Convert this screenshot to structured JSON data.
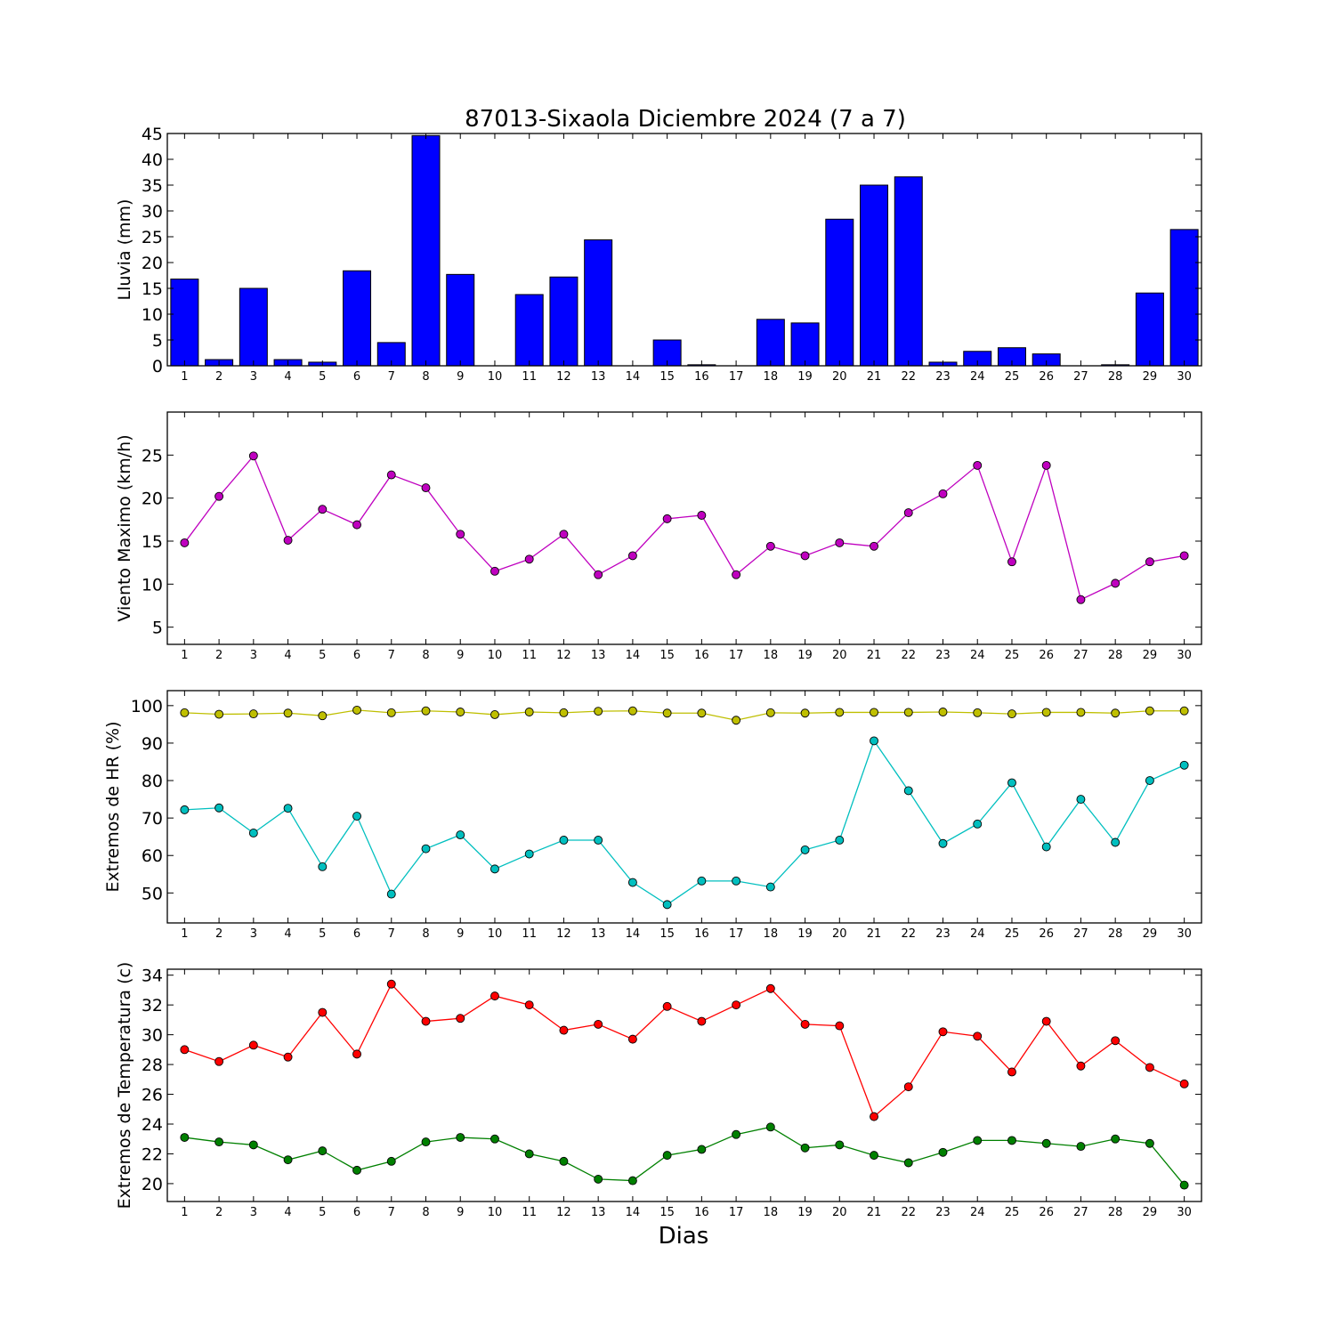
{
  "title": "87013-Sixaola Diciembre 2024  (7 a 7)",
  "xlabel": "Dias",
  "chart_data": [
    {
      "type": "bar",
      "ylabel": "Lluvia (mm)",
      "x": [
        1,
        2,
        3,
        4,
        5,
        6,
        7,
        8,
        9,
        10,
        11,
        12,
        13,
        14,
        15,
        16,
        17,
        18,
        19,
        20,
        21,
        22,
        23,
        24,
        25,
        26,
        27,
        28,
        29,
        30
      ],
      "ylim": [
        0,
        45
      ],
      "yticks": [
        0,
        5,
        10,
        15,
        20,
        25,
        30,
        35,
        40,
        45
      ],
      "series": [
        {
          "color": "#0000ff",
          "values": [
            16.8,
            1.2,
            15.0,
            1.2,
            0.7,
            18.4,
            4.5,
            44.6,
            17.7,
            0.0,
            13.8,
            17.2,
            24.4,
            0.0,
            5.0,
            0.2,
            0.0,
            9.0,
            8.3,
            28.4,
            35.0,
            36.6,
            0.7,
            2.8,
            3.5,
            2.3,
            0.0,
            0.2,
            14.1,
            26.4
          ]
        }
      ]
    },
    {
      "type": "line",
      "ylabel": "Viento Maximo (km/h)",
      "x": [
        1,
        2,
        3,
        4,
        5,
        6,
        7,
        8,
        9,
        10,
        11,
        12,
        13,
        14,
        15,
        16,
        17,
        18,
        19,
        20,
        21,
        22,
        23,
        24,
        25,
        26,
        27,
        28,
        29,
        30
      ],
      "ylim": [
        3,
        30
      ],
      "yticks": [
        5,
        10,
        15,
        20,
        25
      ],
      "series": [
        {
          "color": "#bf00bf",
          "values": [
            14.8,
            20.2,
            24.9,
            15.1,
            18.7,
            16.9,
            22.7,
            21.2,
            15.8,
            11.5,
            12.9,
            15.8,
            11.1,
            13.3,
            17.6,
            18.0,
            11.1,
            14.4,
            13.3,
            14.8,
            14.4,
            18.3,
            20.5,
            23.8,
            12.6,
            23.8,
            8.2,
            10.1,
            12.6,
            13.3
          ]
        }
      ]
    },
    {
      "type": "line",
      "ylabel": "Extremos de HR (%)",
      "x": [
        1,
        2,
        3,
        4,
        5,
        6,
        7,
        8,
        9,
        10,
        11,
        12,
        13,
        14,
        15,
        16,
        17,
        18,
        19,
        20,
        21,
        22,
        23,
        24,
        25,
        26,
        27,
        28,
        29,
        30
      ],
      "ylim": [
        42,
        104
      ],
      "yticks": [
        50,
        60,
        70,
        80,
        90,
        100
      ],
      "series": [
        {
          "color": "#bfbf00",
          "values": [
            98.1,
            97.7,
            97.8,
            98.0,
            97.3,
            98.8,
            98.1,
            98.6,
            98.3,
            97.6,
            98.3,
            98.1,
            98.5,
            98.6,
            98.0,
            98.0,
            96.1,
            98.1,
            98.0,
            98.2,
            98.2,
            98.2,
            98.3,
            98.1,
            97.8,
            98.2,
            98.2,
            98.0,
            98.6,
            98.6
          ]
        },
        {
          "color": "#00bfbf",
          "values": [
            72.2,
            72.7,
            66.0,
            72.6,
            57.0,
            70.5,
            49.7,
            61.8,
            65.5,
            56.4,
            60.4,
            64.1,
            64.1,
            52.8,
            46.9,
            53.2,
            53.2,
            51.6,
            61.5,
            64.1,
            90.6,
            77.3,
            63.2,
            68.4,
            79.4,
            62.3,
            75.0,
            63.5,
            80.0,
            84.1
          ]
        }
      ]
    },
    {
      "type": "line",
      "ylabel": "Extremos de Temperatura (c)",
      "x": [
        1,
        2,
        3,
        4,
        5,
        6,
        7,
        8,
        9,
        10,
        11,
        12,
        13,
        14,
        15,
        16,
        17,
        18,
        19,
        20,
        21,
        22,
        23,
        24,
        25,
        26,
        27,
        28,
        29,
        30
      ],
      "ylim": [
        18.8,
        34.4
      ],
      "yticks": [
        20,
        22,
        24,
        26,
        28,
        30,
        32,
        34
      ],
      "series": [
        {
          "color": "#ff0000",
          "values": [
            29.0,
            28.2,
            29.3,
            28.5,
            31.5,
            28.7,
            33.4,
            30.9,
            31.1,
            32.6,
            32.0,
            30.3,
            30.7,
            29.7,
            31.9,
            30.9,
            32.0,
            33.1,
            30.7,
            30.6,
            24.5,
            26.5,
            30.2,
            29.9,
            27.5,
            30.9,
            27.9,
            29.6,
            27.8,
            26.7
          ]
        },
        {
          "color": "#008000",
          "values": [
            23.1,
            22.8,
            22.6,
            21.6,
            22.2,
            20.9,
            21.5,
            22.8,
            23.1,
            23.0,
            22.0,
            21.5,
            20.3,
            20.2,
            21.9,
            22.3,
            23.3,
            23.8,
            22.4,
            22.6,
            21.9,
            21.4,
            22.1,
            22.9,
            22.9,
            22.7,
            22.5,
            23.0,
            22.7,
            19.9
          ]
        }
      ]
    }
  ]
}
